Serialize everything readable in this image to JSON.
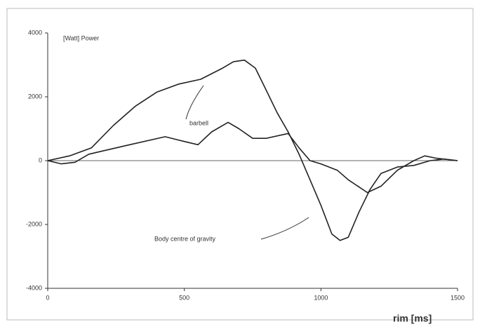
{
  "chart_data": {
    "type": "line",
    "y_label": "[Watt]  Power",
    "x_label": "rim [ms]",
    "annotations": [
      "barbell",
      "Body centre of gravity"
    ],
    "series": [
      {
        "color": "#222222",
        "x": [
          0,
          80,
          160,
          240,
          320,
          400,
          480,
          560,
          640,
          680,
          720,
          760,
          800,
          840,
          880,
          920,
          960,
          1000,
          1040,
          1070,
          1100,
          1140,
          1180,
          1220,
          1280,
          1340,
          1400,
          1450,
          1500
        ],
        "values": [
          0,
          150,
          400,
          1100,
          1700,
          2150,
          2400,
          2550,
          2900,
          3100,
          3150,
          2900,
          2200,
          1500,
          900,
          200,
          -600,
          -1400,
          -2300,
          -2500,
          -2400,
          -1600,
          -900,
          -400,
          -200,
          -150,
          0,
          50,
          0
        ]
      },
      {
        "color": "#222222",
        "x": [
          0,
          50,
          100,
          150,
          200,
          300,
          430,
          500,
          550,
          600,
          660,
          700,
          750,
          800,
          880,
          920,
          960,
          1000,
          1060,
          1100,
          1170,
          1220,
          1280,
          1340,
          1380,
          1420,
          1500
        ],
        "values": [
          0,
          -100,
          -50,
          200,
          300,
          500,
          750,
          600,
          500,
          900,
          1200,
          1000,
          700,
          700,
          850,
          400,
          0,
          -100,
          -300,
          -600,
          -1000,
          -800,
          -300,
          0,
          150,
          80,
          0
        ]
      }
    ],
    "xlim": [
      0,
      1500
    ],
    "xticks": [
      0,
      500,
      1000,
      1500
    ],
    "ylim": [
      -4000,
      4000
    ],
    "yticks": [
      4000,
      2000,
      0,
      -2000,
      -4000
    ]
  }
}
